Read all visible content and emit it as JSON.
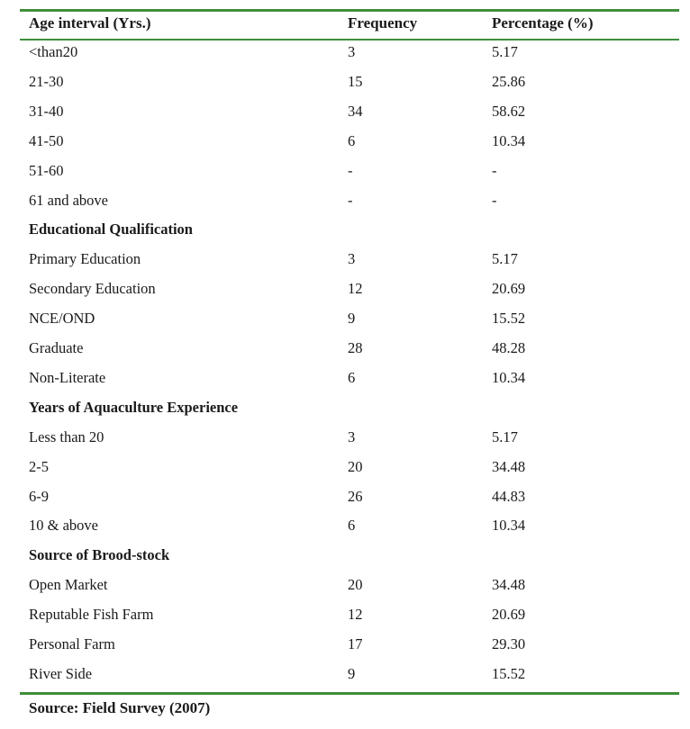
{
  "table": {
    "headers": [
      "Age interval (Yrs.)",
      "Frequency",
      "Percentage (%)"
    ],
    "rows": [
      {
        "type": "data",
        "label": "<than20",
        "frequency": "3",
        "percentage": "5.17"
      },
      {
        "type": "data",
        "label": "21-30",
        "frequency": "15",
        "percentage": "25.86"
      },
      {
        "type": "data",
        "label": "31-40",
        "frequency": "34",
        "percentage": "58.62"
      },
      {
        "type": "data",
        "label": "41-50",
        "frequency": "6",
        "percentage": "10.34"
      },
      {
        "type": "data",
        "label": "51-60",
        "frequency": "-",
        "percentage": "-"
      },
      {
        "type": "data",
        "label": "61 and above",
        "frequency": "-",
        "percentage": "-"
      },
      {
        "type": "section",
        "label": "Educational Qualification",
        "frequency": "",
        "percentage": ""
      },
      {
        "type": "data",
        "label": "Primary Education",
        "frequency": "3",
        "percentage": "5.17"
      },
      {
        "type": "data",
        "label": "Secondary Education",
        "frequency": "12",
        "percentage": "20.69"
      },
      {
        "type": "data",
        "label": "NCE/OND",
        "frequency": "9",
        "percentage": "15.52"
      },
      {
        "type": "data",
        "label": "Graduate",
        "frequency": "28",
        "percentage": "48.28"
      },
      {
        "type": "data",
        "label": "Non-Literate",
        "frequency": "6",
        "percentage": "10.34"
      },
      {
        "type": "section",
        "label": "Years of Aquaculture Experience",
        "frequency": "",
        "percentage": ""
      },
      {
        "type": "data",
        "label": "Less than 20",
        "frequency": "3",
        "percentage": "5.17"
      },
      {
        "type": "data",
        "label": "2-5",
        "frequency": "20",
        "percentage": "34.48"
      },
      {
        "type": "data",
        "label": "6-9",
        "frequency": "26",
        "percentage": "44.83"
      },
      {
        "type": "data",
        "label": "10 & above",
        "frequency": "6",
        "percentage": "10.34"
      },
      {
        "type": "section",
        "label": "Source of Brood-stock",
        "frequency": "",
        "percentage": ""
      },
      {
        "type": "data",
        "label": "Open Market",
        "frequency": "20",
        "percentage": "34.48"
      },
      {
        "type": "data",
        "label": "Reputable Fish Farm",
        "frequency": "12",
        "percentage": "20.69"
      },
      {
        "type": "data",
        "label": "Personal Farm",
        "frequency": "17",
        "percentage": "29.30"
      },
      {
        "type": "data",
        "label": "River Side",
        "frequency": "9",
        "percentage": "15.52"
      }
    ],
    "source": "Source: Field Survey (2007)"
  },
  "colors": {
    "rule": "#3f8f3a",
    "text": "#1a1a1a"
  }
}
